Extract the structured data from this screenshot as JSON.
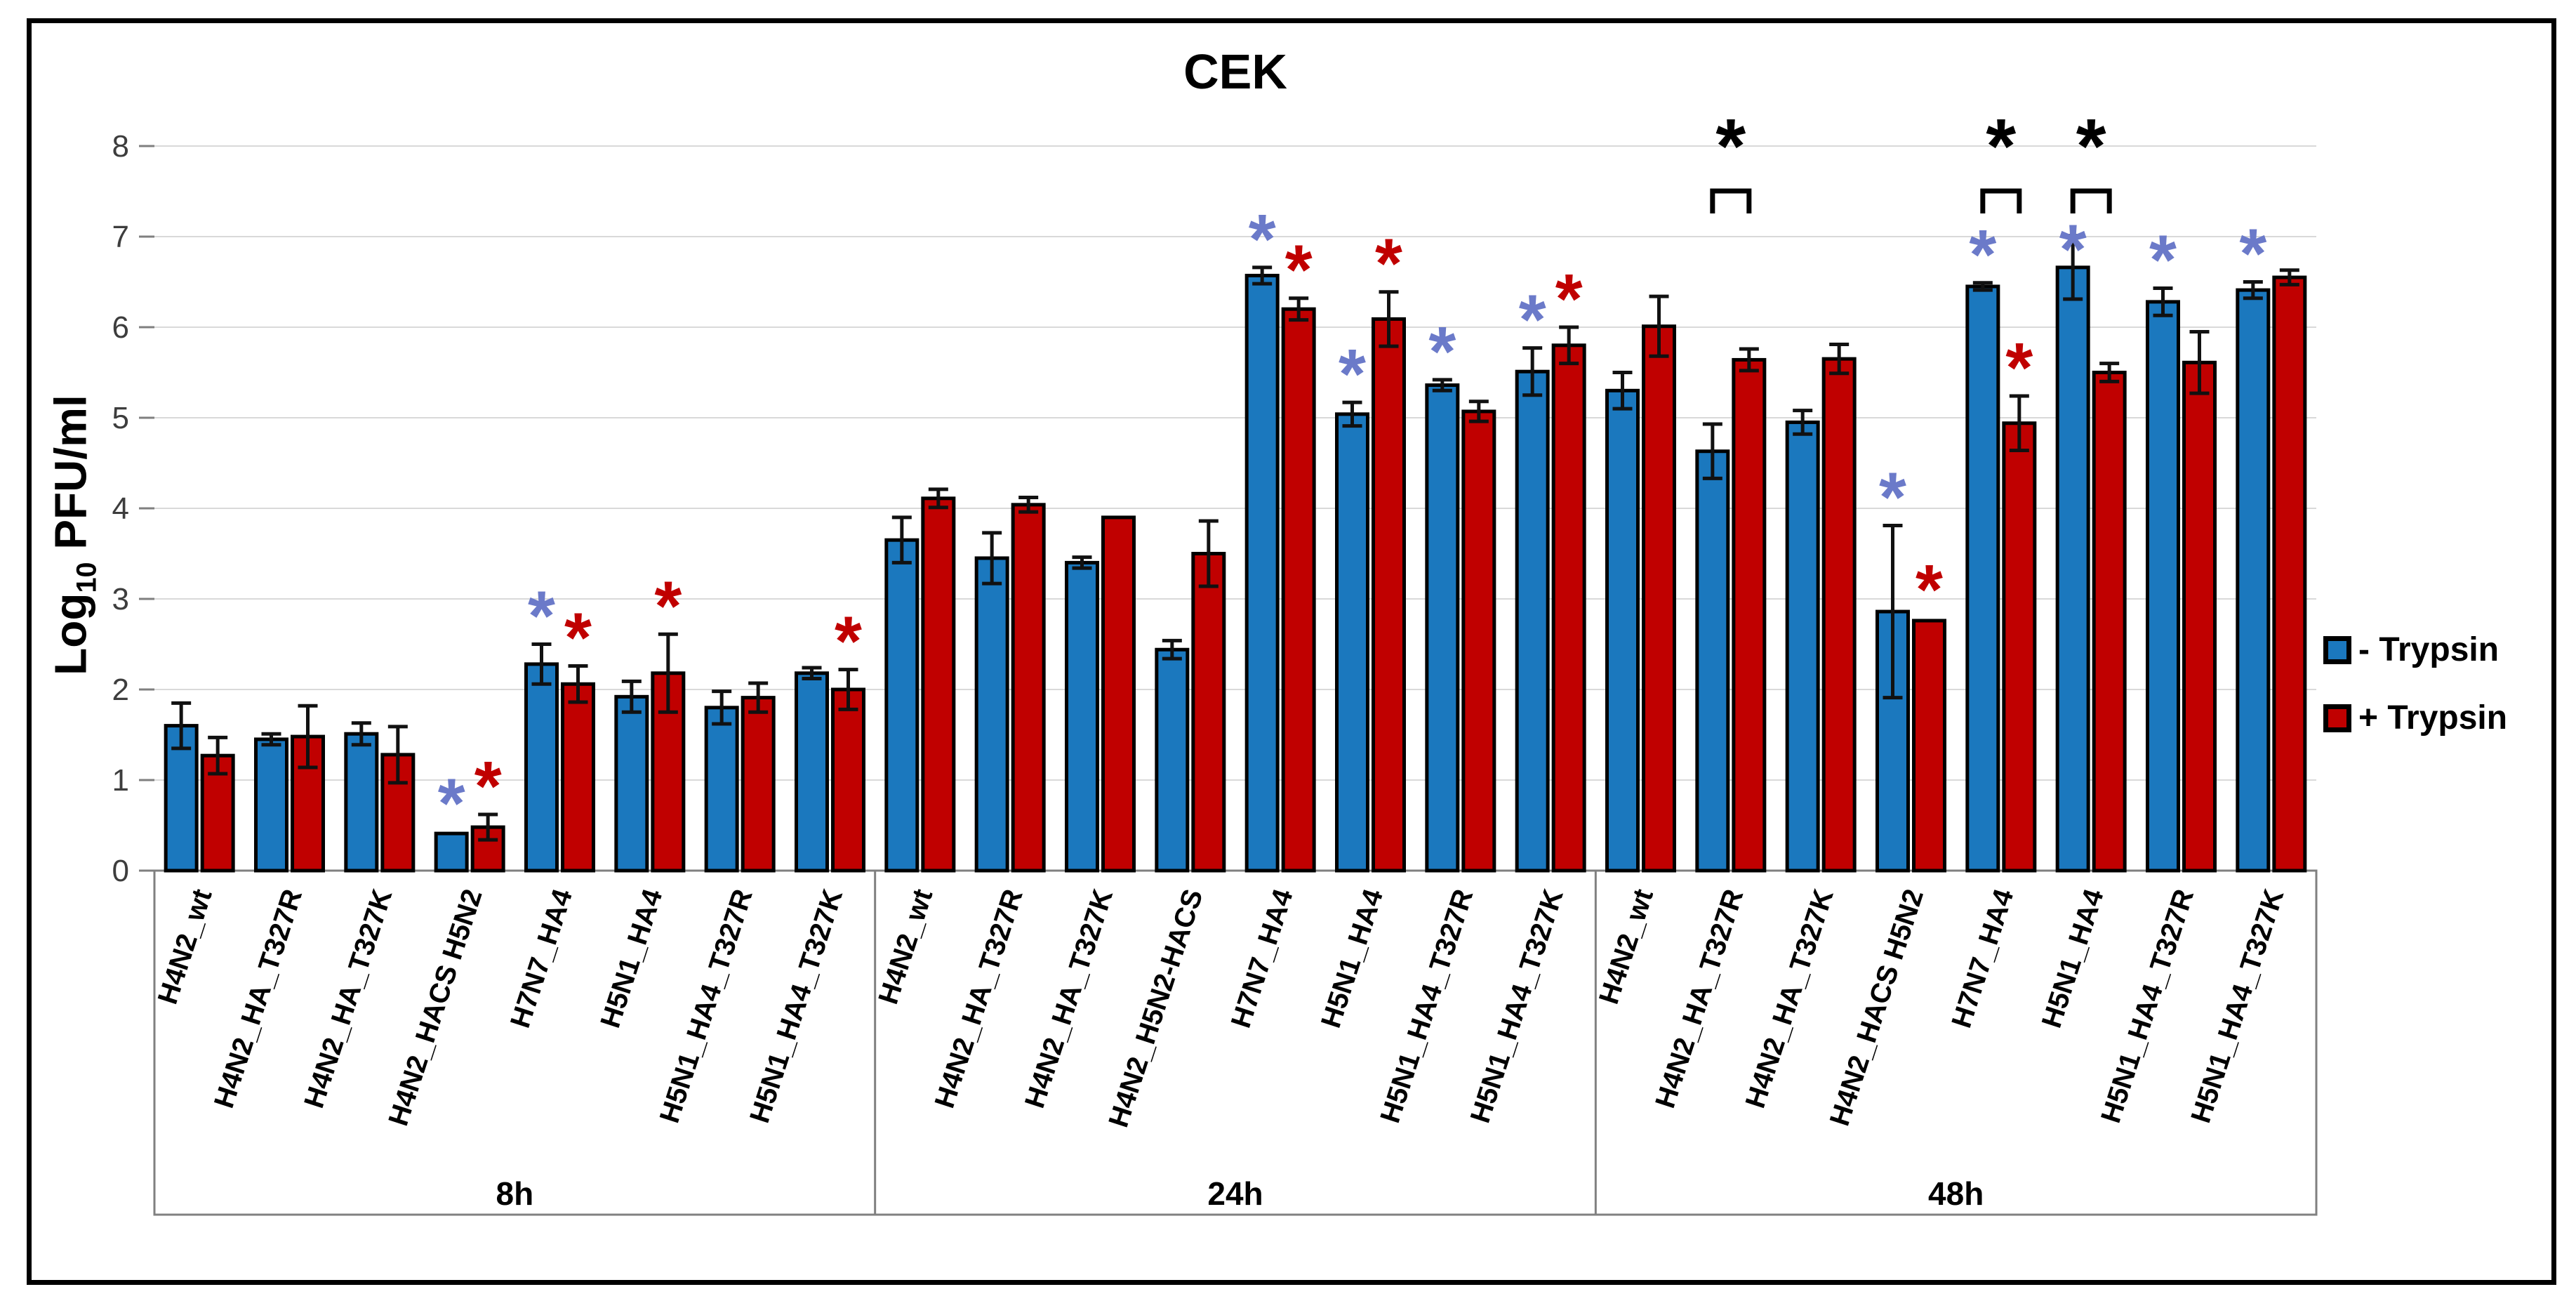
{
  "title": "CEK",
  "ylabel": {
    "prefix": "Log",
    "sub": "10",
    "suffix": " PFU/ml"
  },
  "legend": [
    {
      "label": "- Trypsin",
      "color_key": "minus_bar"
    },
    {
      "label": "+ Trypsin",
      "color_key": "plus_bar"
    }
  ],
  "colors": {
    "minus_bar": "#1B78BE",
    "plus_bar": "#C00000",
    "minus_star": "#6B7AC9",
    "plus_star": "#C00000",
    "black": "#000000",
    "grid": "#D9D9D9",
    "axis": "#7F7F7F",
    "tick_text": "#3D3D3D",
    "box_border": "#808080"
  },
  "chart_data": {
    "type": "bar",
    "title": "CEK",
    "ylabel": "Log10 PFU/ml",
    "ylim": [
      0,
      8
    ],
    "yticks": [
      0,
      1,
      2,
      3,
      4,
      5,
      6,
      7,
      8
    ],
    "grid": true,
    "legend_position": "right",
    "series_names": [
      "- Trypsin",
      "+ Trypsin"
    ],
    "annotation_key": {
      "blue_asterisk": "significant, - Trypsin bar",
      "red_asterisk": "significant, + Trypsin bar",
      "black_asterisk_bracket": "significant difference between - and + Trypsin"
    },
    "groups": [
      {
        "label": "8h",
        "categories": [
          {
            "label": "H4N2_wt",
            "minus": {
              "value": 1.6,
              "err": 0.25
            },
            "plus": {
              "value": 1.27,
              "err": 0.2
            }
          },
          {
            "label": "H4N2_HA_T327R",
            "minus": {
              "value": 1.45,
              "err": 0.06
            },
            "plus": {
              "value": 1.48,
              "err": 0.34
            }
          },
          {
            "label": "H4N2_HA_T327K",
            "minus": {
              "value": 1.51,
              "err": 0.12
            },
            "plus": {
              "value": 1.28,
              "err": 0.31
            }
          },
          {
            "label": "H4N2_HACS H5N2",
            "minus": {
              "value": 0.41,
              "err": 0.02,
              "star": true
            },
            "plus": {
              "value": 0.48,
              "err": 0.14,
              "star": true
            }
          },
          {
            "label": "H7N7_HA4",
            "minus": {
              "value": 2.28,
              "err": 0.22,
              "star": true
            },
            "plus": {
              "value": 2.06,
              "err": 0.2,
              "star": true
            }
          },
          {
            "label": "H5N1_HA4",
            "minus": {
              "value": 1.92,
              "err": 0.17
            },
            "plus": {
              "value": 2.18,
              "err": 0.43,
              "star": true
            }
          },
          {
            "label": "H5N1_HA4_T327R",
            "minus": {
              "value": 1.8,
              "err": 0.18
            },
            "plus": {
              "value": 1.91,
              "err": 0.16
            }
          },
          {
            "label": "H5N1_HA4_T327K",
            "minus": {
              "value": 2.18,
              "err": 0.06
            },
            "plus": {
              "value": 2.0,
              "err": 0.22,
              "star": true
            }
          }
        ]
      },
      {
        "label": "24h",
        "categories": [
          {
            "label": "H4N2_wt",
            "minus": {
              "value": 3.65,
              "err": 0.25
            },
            "plus": {
              "value": 4.11,
              "err": 0.1
            }
          },
          {
            "label": "H4N2_HA_T327R",
            "minus": {
              "value": 3.45,
              "err": 0.28
            },
            "plus": {
              "value": 4.04,
              "err": 0.08
            }
          },
          {
            "label": "H4N2_HA_T327K",
            "minus": {
              "value": 3.4,
              "err": 0.06
            },
            "plus": {
              "value": 3.9,
              "err": 0
            }
          },
          {
            "label": "H4N2_H5N2-HACS",
            "minus": {
              "value": 2.44,
              "err": 0.1
            },
            "plus": {
              "value": 3.5,
              "err": 0.36
            }
          },
          {
            "label": "H7N7_HA4",
            "minus": {
              "value": 6.57,
              "err": 0.09,
              "star": true
            },
            "plus": {
              "value": 6.2,
              "err": 0.12,
              "star": true
            }
          },
          {
            "label": "H5N1_HA4",
            "minus": {
              "value": 5.04,
              "err": 0.13,
              "star": true
            },
            "plus": {
              "value": 6.09,
              "err": 0.3,
              "star": true
            }
          },
          {
            "label": "H5N1_HA4_T327R",
            "minus": {
              "value": 5.36,
              "err": 0.06,
              "star": true
            },
            "plus": {
              "value": 5.07,
              "err": 0.11
            }
          },
          {
            "label": "H5N1_HA4_T327K",
            "minus": {
              "value": 5.51,
              "err": 0.26,
              "star": true
            },
            "plus": {
              "value": 5.8,
              "err": 0.2,
              "star": true
            }
          }
        ]
      },
      {
        "label": "48h",
        "categories": [
          {
            "label": "H4N2_wt",
            "minus": {
              "value": 5.3,
              "err": 0.2
            },
            "plus": {
              "value": 6.01,
              "err": 0.33
            }
          },
          {
            "label": "H4N2_HA_T327R",
            "minus": {
              "value": 4.63,
              "err": 0.3
            },
            "plus": {
              "value": 5.64,
              "err": 0.12
            },
            "pair_star": true
          },
          {
            "label": "H4N2_HA_T327K",
            "minus": {
              "value": 4.95,
              "err": 0.13
            },
            "plus": {
              "value": 5.65,
              "err": 0.16
            }
          },
          {
            "label": "H4N2_HACS H5N2",
            "minus": {
              "value": 2.86,
              "err": 0.95,
              "star": true
            },
            "plus": {
              "value": 2.76,
              "err": 0.03,
              "star": true
            }
          },
          {
            "label": "H7N7_HA4",
            "minus": {
              "value": 6.45,
              "err": 0.04,
              "star": true
            },
            "plus": {
              "value": 4.94,
              "err": 0.3,
              "star": true
            },
            "pair_star": true
          },
          {
            "label": "H5N1_HA4",
            "minus": {
              "value": 6.66,
              "err": 0.35,
              "star": true,
              "star_dy": 60
            },
            "plus": {
              "value": 5.5,
              "err": 0.1
            },
            "pair_star": true
          },
          {
            "label": "H5N1_HA4_T327R",
            "minus": {
              "value": 6.28,
              "err": 0.15,
              "star": true
            },
            "plus": {
              "value": 5.61,
              "err": 0.34
            }
          },
          {
            "label": "H5N1_HA4_T327K",
            "minus": {
              "value": 6.41,
              "err": 0.09,
              "star": true
            },
            "plus": {
              "value": 6.55,
              "err": 0.08
            }
          }
        ]
      }
    ]
  }
}
